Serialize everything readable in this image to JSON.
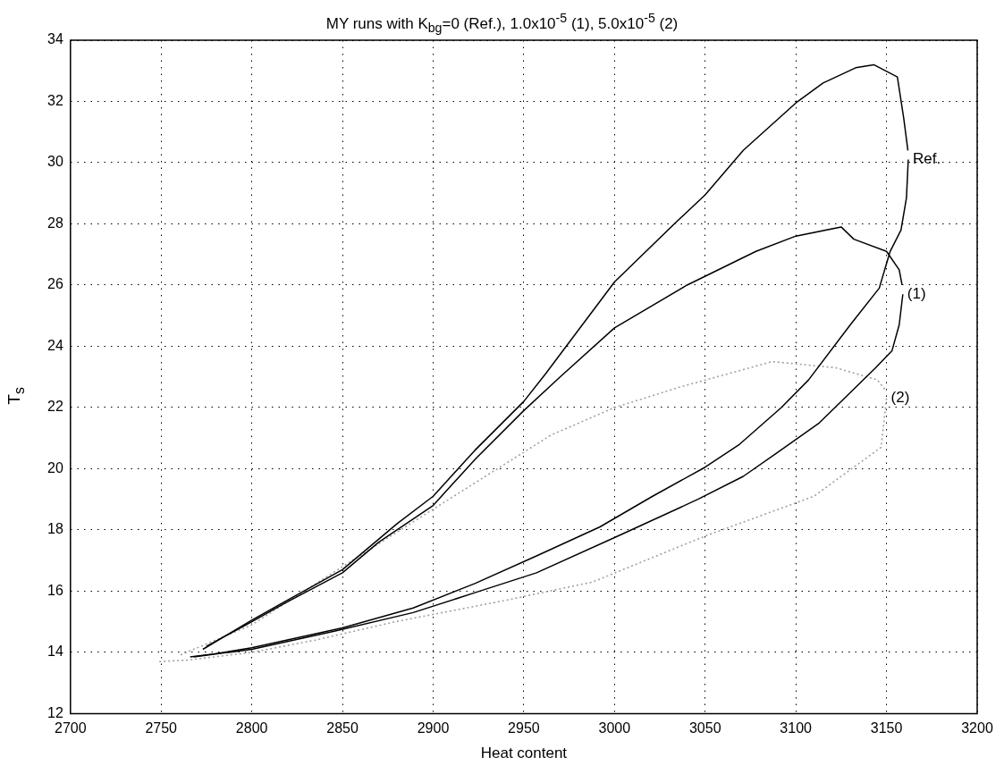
{
  "chart_data": {
    "type": "line",
    "title": "MY runs with K$_{bg}$=0 (Ref.), 1.0x10$^{-5}$ (1), 5.0x10$^{-5}$ (2)",
    "xlabel": "Heat content",
    "ylabel": "T$_{s}$",
    "xlim": [
      2700,
      3200
    ],
    "xticks": [
      2700,
      2750,
      2800,
      2850,
      2900,
      2950,
      3000,
      3050,
      3100,
      3150,
      3200
    ],
    "ylim": [
      12,
      34
    ],
    "yticks": [
      12,
      14,
      16,
      18,
      20,
      22,
      24,
      26,
      28,
      30,
      32,
      34
    ],
    "grid": true,
    "marker": "none",
    "legend": false,
    "series": [
      {
        "name": "Ref.",
        "color": "#000000",
        "line_style": "solid",
        "x": [
          2766,
          2779,
          2800,
          2850,
          2889,
          2923,
          2957,
          2992,
          3021,
          3050,
          3069,
          3092,
          3107,
          3130,
          3146,
          3152,
          3158,
          3161,
          3162
        ],
        "values": [
          13.85,
          13.95,
          14.15,
          14.8,
          15.45,
          16.25,
          17.15,
          18.1,
          19.1,
          20.05,
          20.8,
          22.0,
          22.9,
          24.7,
          25.9,
          27.1,
          27.8,
          28.85,
          30.1
        ]
      },
      {
        "color": "#000000",
        "line_style": "solid",
        "x": [
          3161.8,
          3159.5,
          3156,
          3143,
          3133,
          3115,
          3100,
          3071,
          3050,
          3033,
          3000,
          2962,
          2950,
          2923,
          2900,
          2880,
          2850,
          2818,
          2800,
          2773
        ],
        "values": [
          30.4,
          31.45,
          32.8,
          33.2,
          33.1,
          32.6,
          31.95,
          30.4,
          28.95,
          28.0,
          26.1,
          23.1,
          22.2,
          20.6,
          19.1,
          18.2,
          16.7,
          15.65,
          15.05,
          14.1
        ]
      },
      {
        "name": "(1)",
        "color": "#000000",
        "line_style": "solid",
        "x": [
          2768,
          2800,
          2846,
          2889,
          2923,
          2957,
          3000,
          3046,
          3071,
          3094,
          3113,
          3144,
          3153,
          3157,
          3159
        ],
        "values": [
          13.85,
          14.1,
          14.7,
          15.3,
          15.95,
          16.6,
          17.75,
          19.0,
          19.75,
          20.7,
          21.5,
          23.3,
          23.85,
          24.7,
          25.7
        ]
      },
      {
        "color": "#000000",
        "line_style": "solid",
        "x": [
          3158.6,
          3157,
          3150,
          3132,
          3125,
          3100,
          3078,
          3040,
          3000,
          2970,
          2950,
          2923,
          2900,
          2870,
          2850,
          2818,
          2800,
          2775
        ],
        "values": [
          26.0,
          26.5,
          27.1,
          27.5,
          27.9,
          27.6,
          27.1,
          26.0,
          24.6,
          23.0,
          21.9,
          20.3,
          18.8,
          17.6,
          16.6,
          15.6,
          15.0,
          14.2
        ]
      },
      {
        "name": "(2)",
        "color": "#a0a0a0",
        "line_style": "dotted",
        "x": [
          2749,
          2765,
          2800,
          2835,
          2879,
          2940,
          2988,
          3050,
          3110,
          3147,
          3150
        ],
        "values": [
          13.7,
          13.75,
          14.0,
          14.4,
          15.0,
          15.7,
          16.3,
          17.8,
          19.1,
          20.7,
          22.3
        ]
      },
      {
        "color": "#a0a0a0",
        "line_style": "dotted",
        "x": [
          3149,
          3145,
          3122,
          3087,
          3035,
          3000,
          2965,
          2906,
          2850,
          2800,
          2760
        ],
        "values": [
          22.6,
          22.9,
          23.3,
          23.5,
          22.65,
          22.0,
          21.1,
          18.9,
          16.8,
          14.9,
          13.9
        ]
      }
    ]
  }
}
